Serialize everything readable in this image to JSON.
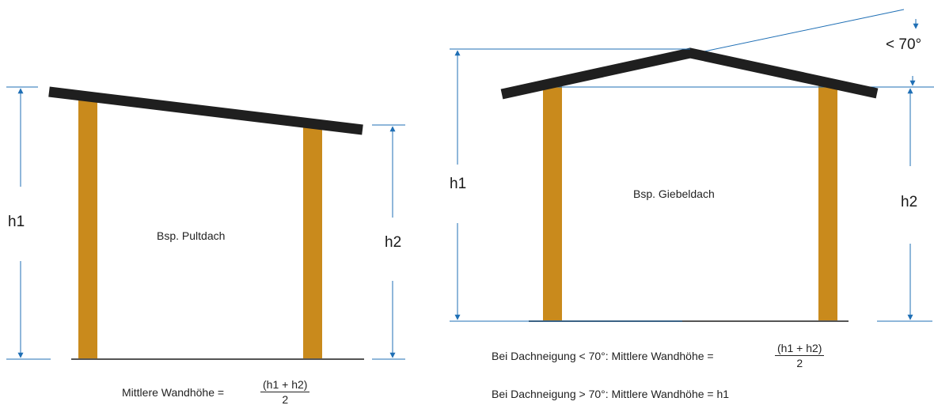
{
  "colors": {
    "roof": "#1f1f1f",
    "post": "#c98a1c",
    "dimension": "#1f6fb5",
    "ground": "#555555",
    "text": "#1a1a1a"
  },
  "pultdach": {
    "label": "Bsp. Pultdach",
    "h1": "h1",
    "h2": "h2",
    "formula_prefix": "Mittlere Wandhöhe =",
    "numerator": "(h1 + h2)",
    "denominator": "2"
  },
  "giebeldach": {
    "label": "Bsp. Giebeldach",
    "h1": "h1",
    "h2": "h2",
    "angle": "< 70°",
    "rule1_prefix": "Bei Dachneigung < 70°: Mittlere Wandhöhe =",
    "rule1_numerator": "(h1 + h2)",
    "rule1_denominator": "2",
    "rule2": "Bei Dachneigung > 70°: Mittlere Wandhöhe = h1"
  }
}
